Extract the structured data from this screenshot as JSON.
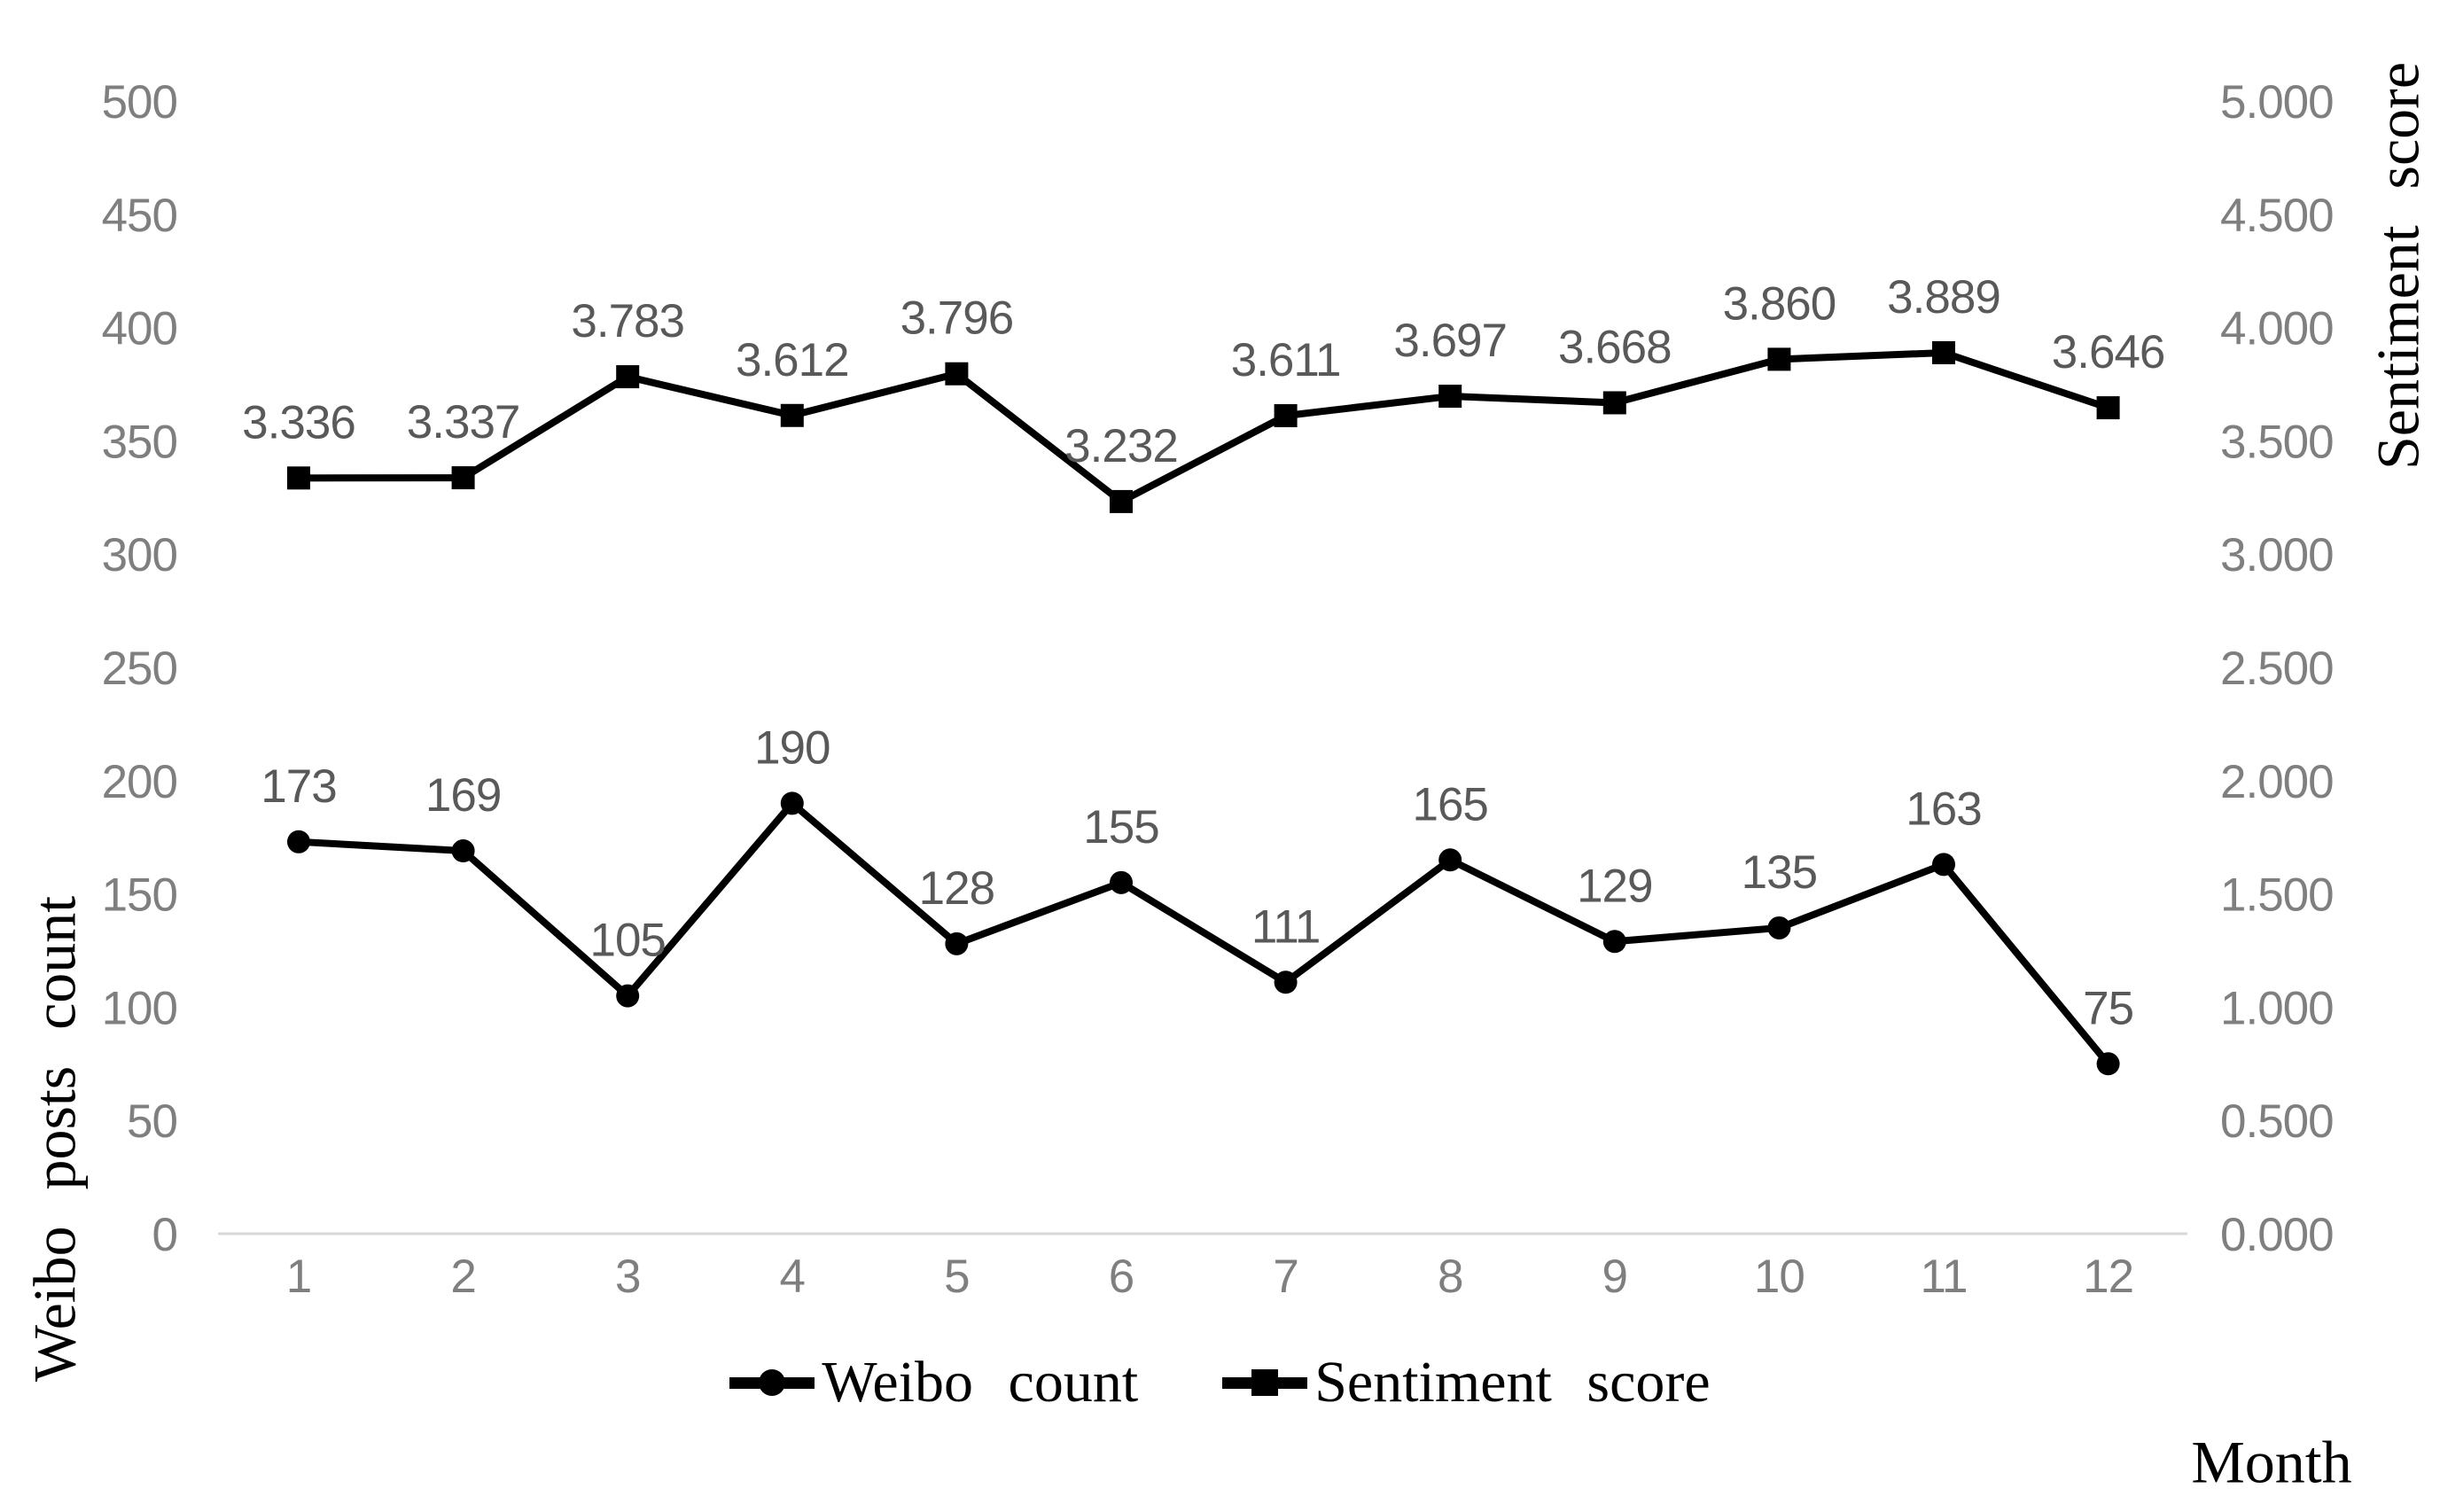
{
  "figure": {
    "left_axis_title": "Weibo posts count",
    "right_axis_title": "Sentiment score",
    "x_axis_title": "Month",
    "legend": [
      {
        "label": "Weibo count",
        "marker": "circle-marker-icon"
      },
      {
        "label": "Sentiment score",
        "marker": "square-marker-icon"
      }
    ],
    "colors": {
      "series_line": "#000000",
      "tick_label": "#7f7f7f",
      "data_label": "#595959",
      "baseline": "#d9d9d9",
      "background": "#ffffff"
    }
  },
  "chart_data": {
    "type": "line",
    "title": "",
    "xlabel": "Month",
    "x": [
      1,
      2,
      3,
      4,
      5,
      6,
      7,
      8,
      9,
      10,
      11,
      12
    ],
    "x_tick_labels": [
      "1",
      "2",
      "3",
      "4",
      "5",
      "6",
      "7",
      "8",
      "9",
      "10",
      "11",
      "12"
    ],
    "series": [
      {
        "name": "Weibo count",
        "axis": "left",
        "marker": "circle",
        "values": [
          173,
          169,
          105,
          190,
          128,
          155,
          111,
          165,
          129,
          135,
          163,
          75
        ],
        "labels": [
          "173",
          "169",
          "105",
          "190",
          "128",
          "155",
          "111",
          "165",
          "129",
          "135",
          "163",
          "75"
        ]
      },
      {
        "name": "Sentiment score",
        "axis": "right",
        "marker": "square",
        "values": [
          3.336,
          3.337,
          3.783,
          3.612,
          3.796,
          3.232,
          3.611,
          3.697,
          3.668,
          3.86,
          3.889,
          3.646
        ],
        "labels": [
          "3.336",
          "3.337",
          "3.783",
          "3.612",
          "3.796",
          "3.232",
          "3.611",
          "3.697",
          "3.668",
          "3.860",
          "3.889",
          "3.646"
        ]
      }
    ],
    "left_axis": {
      "title": "Weibo posts count",
      "min": 0,
      "max": 500,
      "step": 50,
      "tick_labels": [
        "0",
        "50",
        "100",
        "150",
        "200",
        "250",
        "300",
        "350",
        "400",
        "450",
        "500"
      ]
    },
    "right_axis": {
      "title": "Sentiment score",
      "min": 0,
      "max": 5,
      "step": 0.5,
      "tick_labels": [
        "0.000",
        "0.500",
        "1.000",
        "1.500",
        "2.000",
        "2.500",
        "3.000",
        "3.500",
        "4.000",
        "4.500",
        "5.000"
      ]
    },
    "grid": "baseline-only",
    "legend_position": "bottom-center"
  }
}
